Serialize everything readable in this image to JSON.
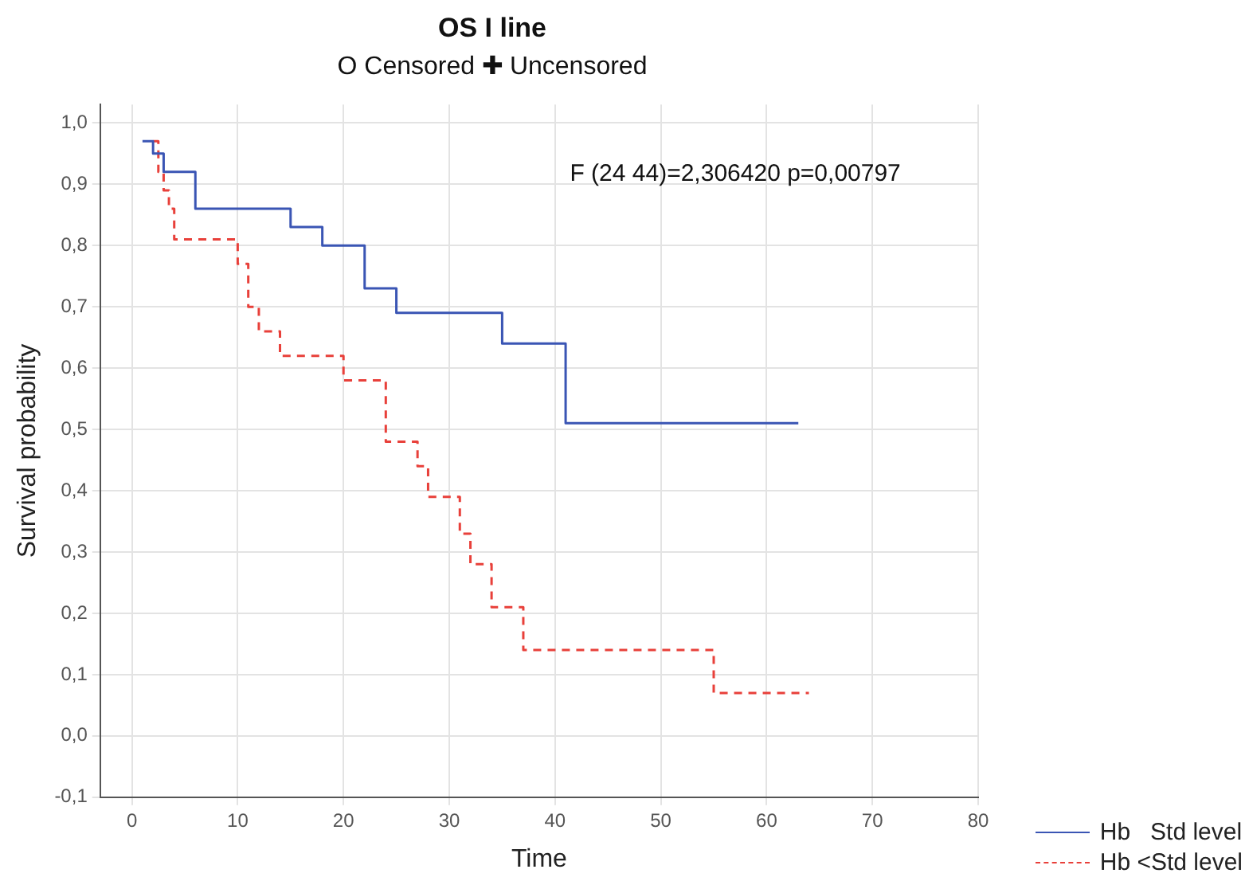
{
  "chart_data": {
    "type": "step",
    "title": "OS I line",
    "subtitle": "O Censored ✚ Uncensored",
    "xlabel": "Time",
    "ylabel": "Survival probability",
    "annotations": [
      "F (24 44)=2,306420 p=0,00797"
    ],
    "xlim": [
      -3,
      80
    ],
    "xticks": [
      0,
      10,
      20,
      30,
      40,
      50,
      60,
      70,
      80
    ],
    "ylim": [
      -0.1,
      1.03
    ],
    "yticks": [
      {
        "value": -0.1,
        "label": "-0,1"
      },
      {
        "value": 0,
        "label": "0,0"
      },
      {
        "value": 0.1,
        "label": "0,1"
      },
      {
        "value": 0.2,
        "label": "0,2"
      },
      {
        "value": 0.3,
        "label": "0,3"
      },
      {
        "value": 0.4,
        "label": "0,4"
      },
      {
        "value": 0.5,
        "label": "0,5"
      },
      {
        "value": 0.6,
        "label": "0,6"
      },
      {
        "value": 0.7,
        "label": "0,7"
      },
      {
        "value": 0.8,
        "label": "0,8"
      },
      {
        "value": 0.9,
        "label": "0,9"
      },
      {
        "value": 1.0,
        "label": "1,0"
      }
    ],
    "grid": true,
    "legend": "bottom right",
    "series": [
      {
        "name": "Hb   Std level",
        "color": "#3a55b4",
        "line_style": "solid",
        "x": [
          1,
          2,
          3,
          6,
          15,
          18,
          22,
          22,
          25,
          35,
          41,
          63
        ],
        "values": [
          0.97,
          0.95,
          0.92,
          0.86,
          0.83,
          0.8,
          0.76,
          0.73,
          0.69,
          0.64,
          0.51,
          0.51
        ]
      },
      {
        "name": "Hb <Std level",
        "color": "#e8403a",
        "line_style": "dashed",
        "x": [
          2,
          2.5,
          2.5,
          3,
          3.5,
          4,
          4,
          10,
          11,
          11,
          12,
          14,
          20,
          24,
          24,
          27,
          28,
          31,
          32,
          34,
          37,
          55,
          64
        ],
        "values": [
          0.97,
          0.95,
          0.92,
          0.89,
          0.86,
          0.83,
          0.81,
          0.77,
          0.74,
          0.7,
          0.66,
          0.62,
          0.58,
          0.53,
          0.48,
          0.44,
          0.39,
          0.33,
          0.28,
          0.21,
          0.14,
          0.07,
          0.07
        ]
      }
    ]
  }
}
